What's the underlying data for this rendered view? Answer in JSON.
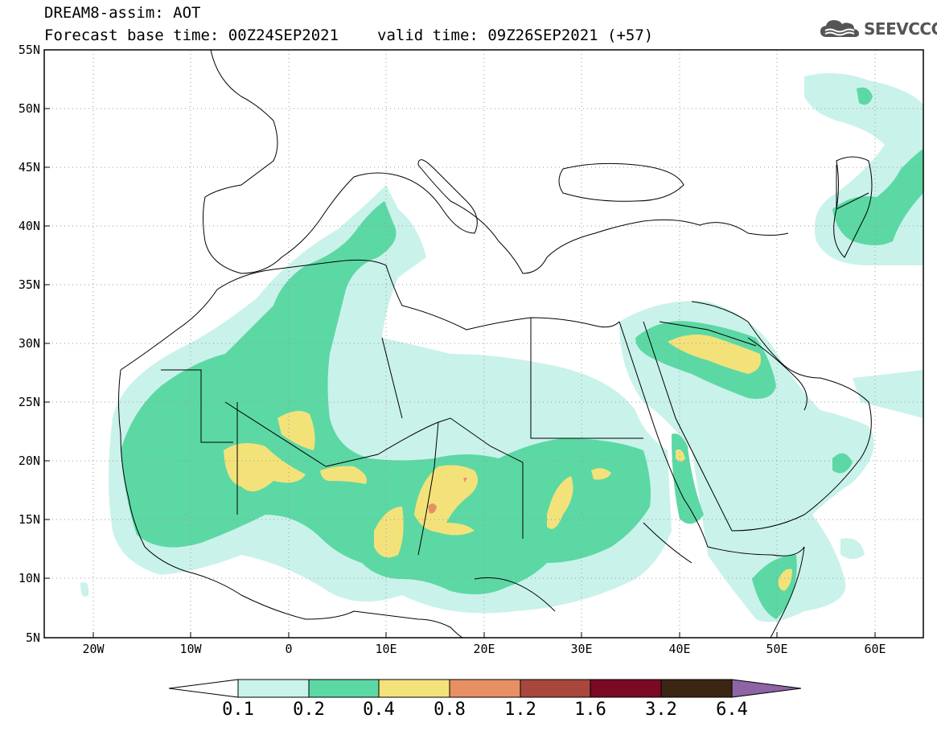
{
  "header": {
    "title_line1": "DREAM8-assim: AOT",
    "title_line2_base": "Forecast base time: 00Z24SEP2021",
    "title_line2_valid": "valid time: 09Z26SEP2021 (+57)"
  },
  "logo": {
    "text": "SEEVCCC",
    "icon": "cloud-icon"
  },
  "map": {
    "lon_range": [
      -25,
      65
    ],
    "lat_range": [
      5,
      55
    ],
    "lat_ticks": [
      "55N",
      "50N",
      "45N",
      "40N",
      "35N",
      "30N",
      "25N",
      "20N",
      "15N",
      "10N",
      "5N"
    ],
    "lon_ticks": [
      "20W",
      "10W",
      "0",
      "10E",
      "20E",
      "30E",
      "40E",
      "50E",
      "60E"
    ],
    "gridlines": "dotted"
  },
  "colorbar": {
    "labels": [
      "0.1",
      "0.2",
      "0.4",
      "0.8",
      "1.2",
      "1.6",
      "3.2",
      "6.4"
    ],
    "colors": [
      "#ffffff",
      "#c9f2ea",
      "#5cd8a4",
      "#f3e27a",
      "#e69064",
      "#a9473d",
      "#7a0a24",
      "#3b2613",
      "#8e64a4"
    ]
  }
}
